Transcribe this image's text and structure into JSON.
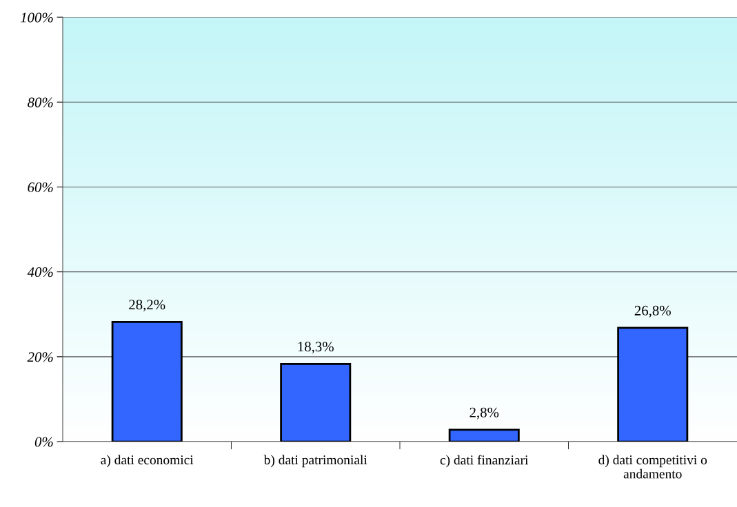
{
  "chart_data": {
    "type": "bar",
    "categories": [
      "a) dati economici",
      "b) dati patrimoniali",
      "c) dati finanziari",
      "d) dati competitivi o\nandamento"
    ],
    "values": [
      28.2,
      18.3,
      2.8,
      26.8
    ],
    "value_labels": [
      "28,2%",
      "18,3%",
      "2,8%",
      "26,8%"
    ],
    "color": "#3366ff",
    "ylim": [
      0,
      100
    ],
    "yticks": [
      {
        "value": 0,
        "label": "0%"
      },
      {
        "value": 20,
        "label": "20%"
      },
      {
        "value": 40,
        "label": "40%"
      },
      {
        "value": 60,
        "label": "60%"
      },
      {
        "value": 80,
        "label": "80%"
      },
      {
        "value": 100,
        "label": "100%"
      }
    ],
    "grid": "y",
    "legend": false
  }
}
